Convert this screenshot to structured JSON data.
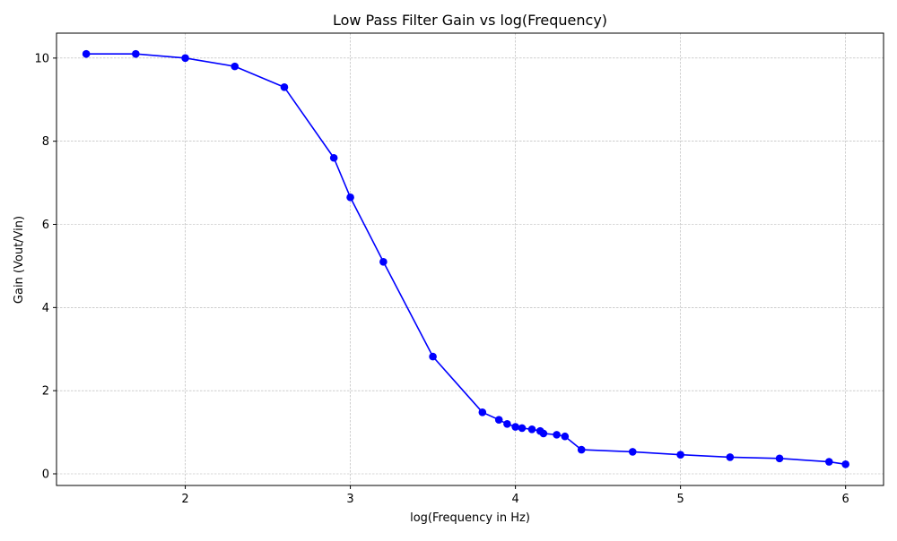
{
  "chart_data": {
    "type": "line",
    "title": "Low Pass Filter Gain vs log(Frequency)",
    "xlabel": "log(Frequency in Hz)",
    "ylabel": "Gain (Vout/Vin)",
    "xlim": [
      1.22,
      6.23
    ],
    "ylim": [
      -0.28,
      10.6
    ],
    "xticks": [
      2,
      3,
      4,
      5,
      6
    ],
    "yticks": [
      0,
      2,
      4,
      6,
      8,
      10
    ],
    "grid": true,
    "series": [
      {
        "color": "#0000ff",
        "marker": "circle",
        "x": [
          1.4,
          1.7,
          2.0,
          2.3,
          2.6,
          2.9,
          3.0,
          3.2,
          3.5,
          3.8,
          3.9,
          3.95,
          4.0,
          4.04,
          4.1,
          4.15,
          4.17,
          4.25,
          4.3,
          4.4,
          4.71,
          5.0,
          5.3,
          5.6,
          5.9,
          6.0
        ],
        "y": [
          10.1,
          10.1,
          10.0,
          9.8,
          9.3,
          7.6,
          6.65,
          5.1,
          2.82,
          1.48,
          1.3,
          1.2,
          1.13,
          1.1,
          1.07,
          1.03,
          0.97,
          0.94,
          0.9,
          0.58,
          0.53,
          0.46,
          0.4,
          0.37,
          0.29,
          0.23
        ]
      }
    ]
  }
}
